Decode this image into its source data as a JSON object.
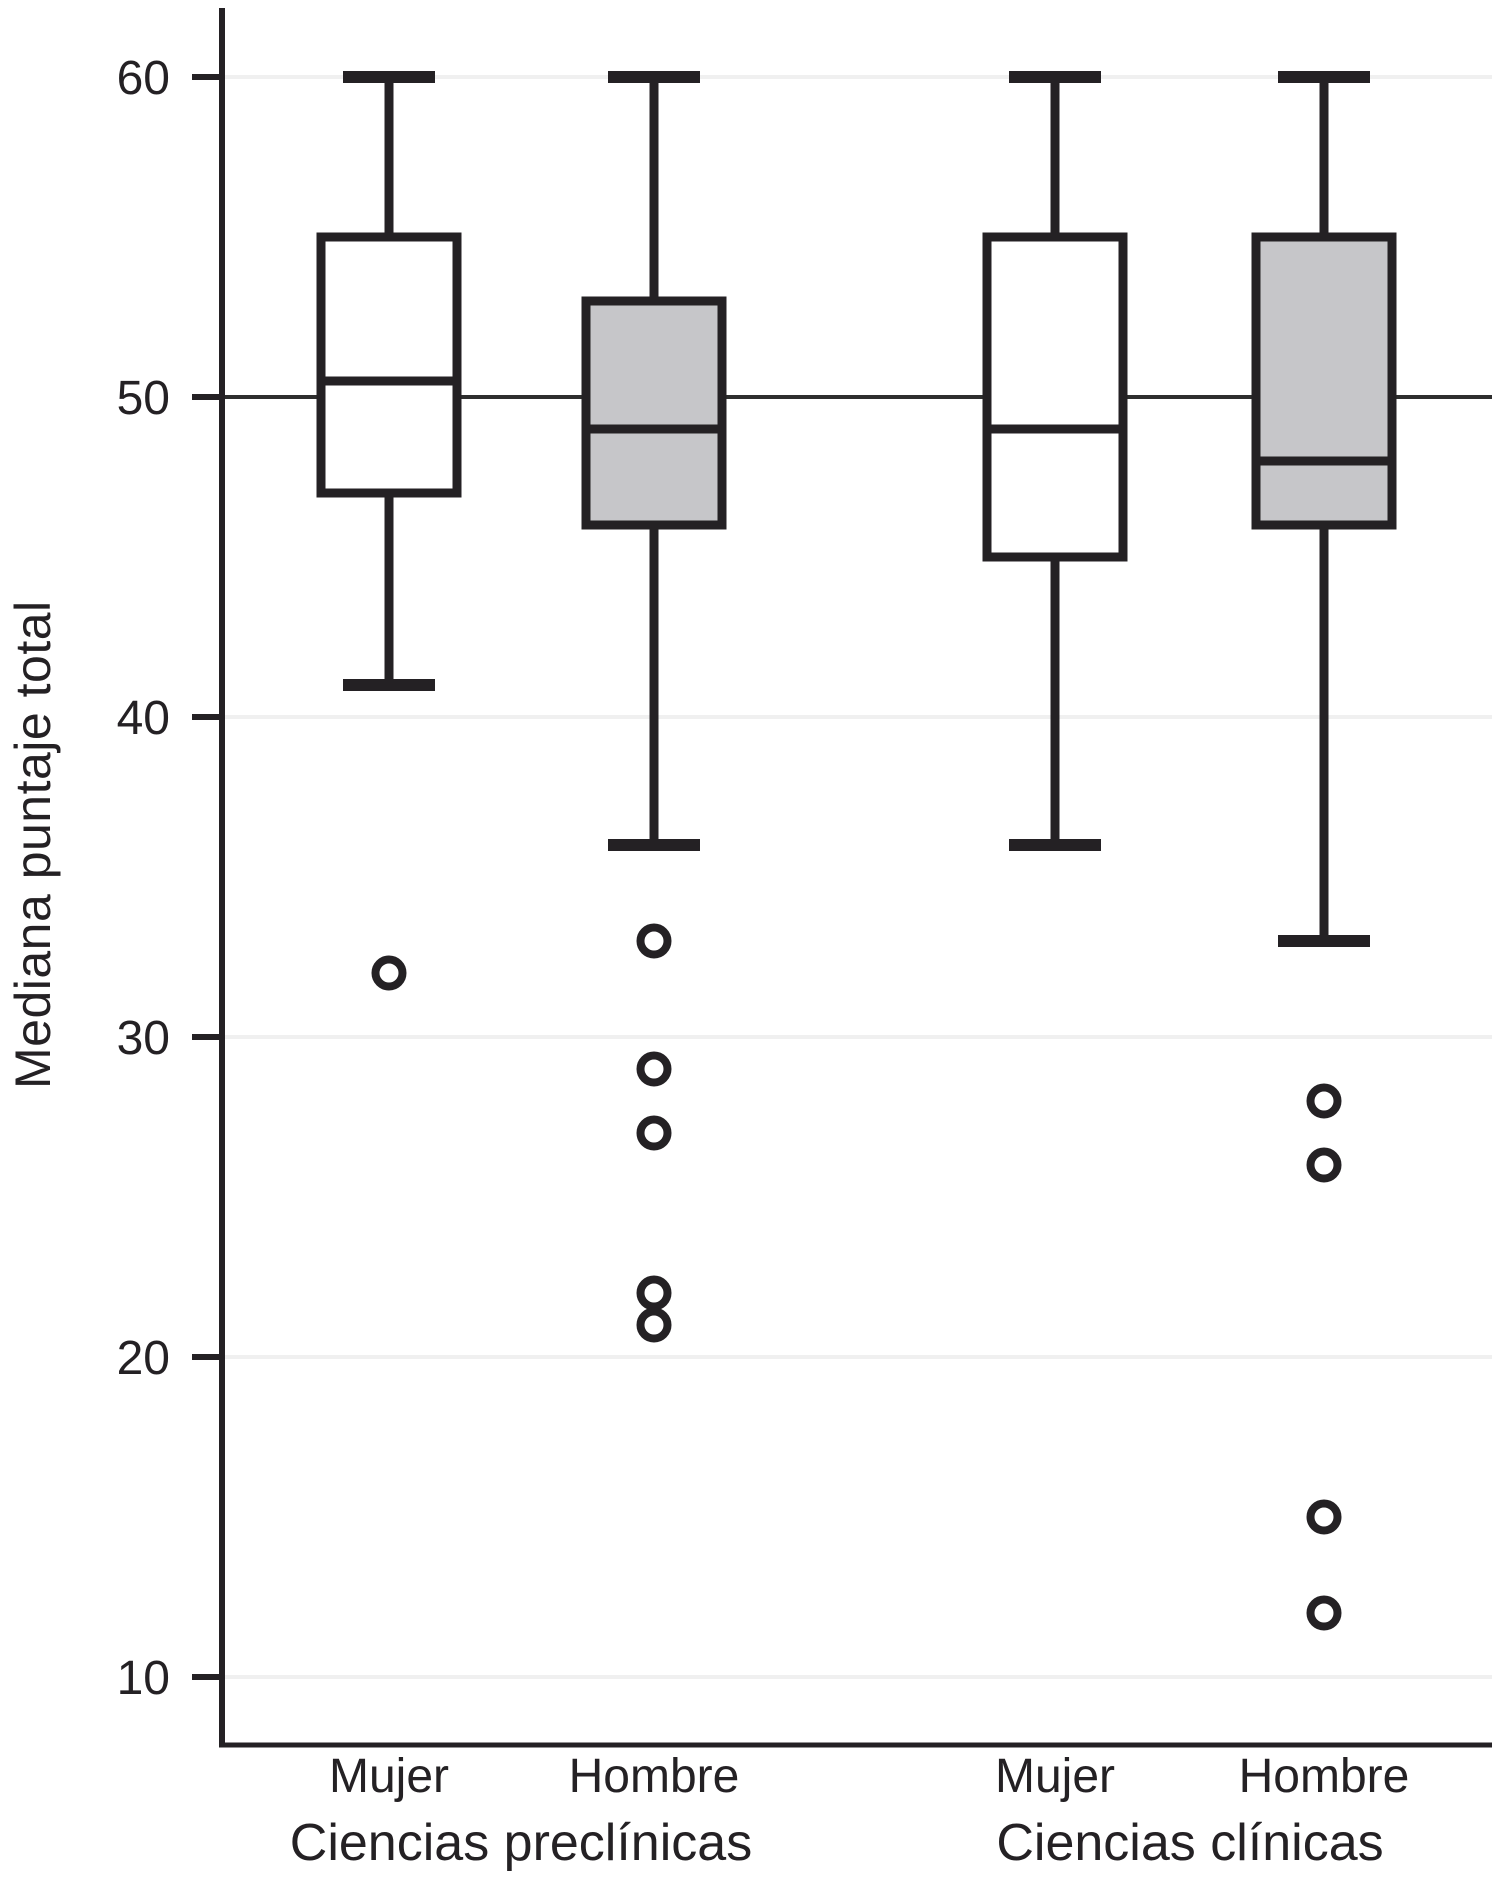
{
  "chart_data": {
    "type": "boxplot",
    "title": "",
    "ylabel": "Mediana puntaje total",
    "xlabel": "",
    "y_ticks": [
      60,
      50,
      40,
      30,
      20,
      10
    ],
    "ylim": [
      8,
      62
    ],
    "reference_line": 50,
    "grid": "horizontal-light",
    "legend": "none",
    "groups": [
      "Ciencias preclínicas",
      "Ciencias clínicas"
    ],
    "boxes": [
      {
        "group": "Ciencias preclínicas",
        "category": "Mujer",
        "fill": "white",
        "whisker_low": 41,
        "q1": 47,
        "median": 50.5,
        "q3": 55,
        "whisker_high": 60,
        "outliers": [
          32
        ]
      },
      {
        "group": "Ciencias preclínicas",
        "category": "Hombre",
        "fill": "gray",
        "whisker_low": 36,
        "q1": 46,
        "median": 49,
        "q3": 53,
        "whisker_high": 60,
        "outliers": [
          33,
          29,
          27,
          22,
          21
        ]
      },
      {
        "group": "Ciencias clínicas",
        "category": "Mujer",
        "fill": "white",
        "whisker_low": 36,
        "q1": 45,
        "median": 49,
        "q3": 55,
        "whisker_high": 60,
        "outliers": []
      },
      {
        "group": "Ciencias clínicas",
        "category": "Hombre",
        "fill": "gray",
        "whisker_low": 33,
        "q1": 46,
        "median": 48,
        "q3": 55,
        "whisker_high": 60,
        "outliers": [
          28,
          26,
          15,
          12
        ]
      }
    ],
    "colors": {
      "ink": "#242124",
      "box_fill_white": "#ffffff",
      "box_fill_gray": "#c6c6c9",
      "gridline": "#f0f0f0",
      "reference_line_color": "#2e2e2e",
      "background": "#ffffff"
    }
  }
}
